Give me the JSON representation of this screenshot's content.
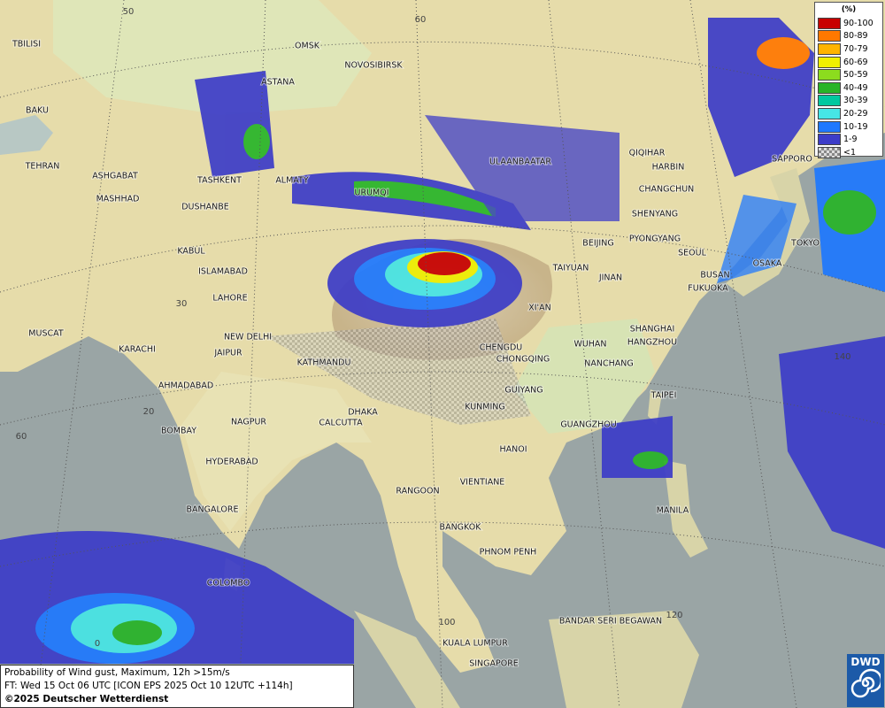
{
  "legend": {
    "title": "(%)",
    "items": [
      {
        "label": "90-100",
        "color": "#c80000"
      },
      {
        "label": "80-89",
        "color": "#ff7800"
      },
      {
        "label": "70-79",
        "color": "#ffb400"
      },
      {
        "label": "60-69",
        "color": "#f0f000"
      },
      {
        "label": "50-59",
        "color": "#8cdc1e"
      },
      {
        "label": "40-49",
        "color": "#28b428"
      },
      {
        "label": "30-39",
        "color": "#00c8a0"
      },
      {
        "label": "20-29",
        "color": "#46e6e6"
      },
      {
        "label": "10-19",
        "color": "#1e78ff"
      },
      {
        "label": "1-9",
        "color": "#3c3cc8"
      },
      {
        "label": "<1",
        "color": "#b4b4b4"
      }
    ]
  },
  "cities": [
    "OMSK",
    "NOVOSIBIRSK",
    "ASTANA",
    "TBILISI",
    "BAKU",
    "TEHRAN",
    "ASHGABAT",
    "MASHHAD",
    "TASHKENT",
    "ALMATY",
    "DUSHANBE",
    "URUMQI",
    "ULAANBAATAR",
    "QIQIHAR",
    "HARBIN",
    "CHANGCHUN",
    "SHENYANG",
    "BEIJING",
    "PYONGYANG",
    "SEOUL",
    "SAPPORO",
    "TOKYO",
    "OSAKA",
    "BUSAN",
    "FUKUOKA",
    "KABUL",
    "ISLAMABAD",
    "LAHORE",
    "TAIYUAN",
    "JINAN",
    "XI'AN",
    "SHANGHAI",
    "HANGZHOU",
    "NEW DELHI",
    "JAIPUR",
    "KARACHI",
    "MUSCAT",
    "CHENGDU",
    "CHONGQING",
    "WUHAN",
    "NANCHANG",
    "KATHMANDU",
    "AHMADABAD",
    "GUIYANG",
    "TAIPEI",
    "KUNMING",
    "DHAKA",
    "CALCUTTA",
    "NAGPUR",
    "GUANGZHOU",
    "BOMBAY",
    "HANOI",
    "HYDERABAD",
    "RANGOON",
    "VIENTIANE",
    "MANILA",
    "BANGALORE",
    "BANGKOK",
    "PHNOM PENH",
    "COLOMBO",
    "BANDAR SERI BEGAWAN",
    "KUALA LUMPUR",
    "SINGAPORE"
  ],
  "graticule": [
    "50",
    "60",
    "30",
    "20",
    "60",
    "0",
    "100",
    "120",
    "140"
  ],
  "footer": {
    "line1": "Probability of Wind gust, Maximum, 12h >15m/s",
    "line2": "FT: Wed 15 Oct 06 UTC [ICON EPS 2025 Oct 10 12UTC +114h]",
    "line3": "©2025 Deutscher Wetterdienst"
  },
  "logo": "DWD"
}
